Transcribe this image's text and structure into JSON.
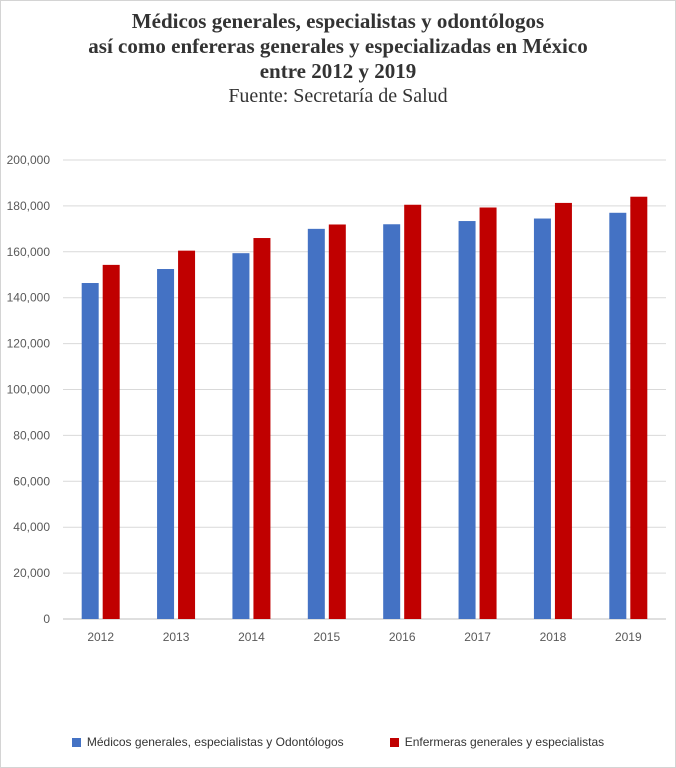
{
  "chart_data": {
    "type": "bar",
    "title_lines": [
      "Médicos generales, especialistas y odontólogos",
      "así como enfereras generales y especializadas en México",
      "entre 2012 y 2019"
    ],
    "subtitle": "Fuente: Secretaría de Salud",
    "xlabel": "",
    "ylabel": "",
    "ylim": [
      0,
      200000
    ],
    "y_ticks": [
      "200,000",
      "180,000",
      "160,000",
      "140,000",
      "120,000",
      "100,000",
      "80,000",
      "60,000",
      "40,000",
      "20,000",
      "0"
    ],
    "categories": [
      "2012",
      "2013",
      "2014",
      "2015",
      "2016",
      "2017",
      "2018",
      "2019"
    ],
    "grid": true,
    "legend_position": "bottom",
    "series": [
      {
        "name": "Médicos generales, especialistas y Odontólogos",
        "color": "#4472c4",
        "values": [
          146400,
          152500,
          159400,
          170000,
          172000,
          173400,
          174500,
          177000
        ]
      },
      {
        "name": "Enfermeras generales y especialistas",
        "color": "#c00000",
        "values": [
          154300,
          160500,
          166000,
          171900,
          180500,
          179300,
          181300,
          184000
        ]
      }
    ]
  }
}
